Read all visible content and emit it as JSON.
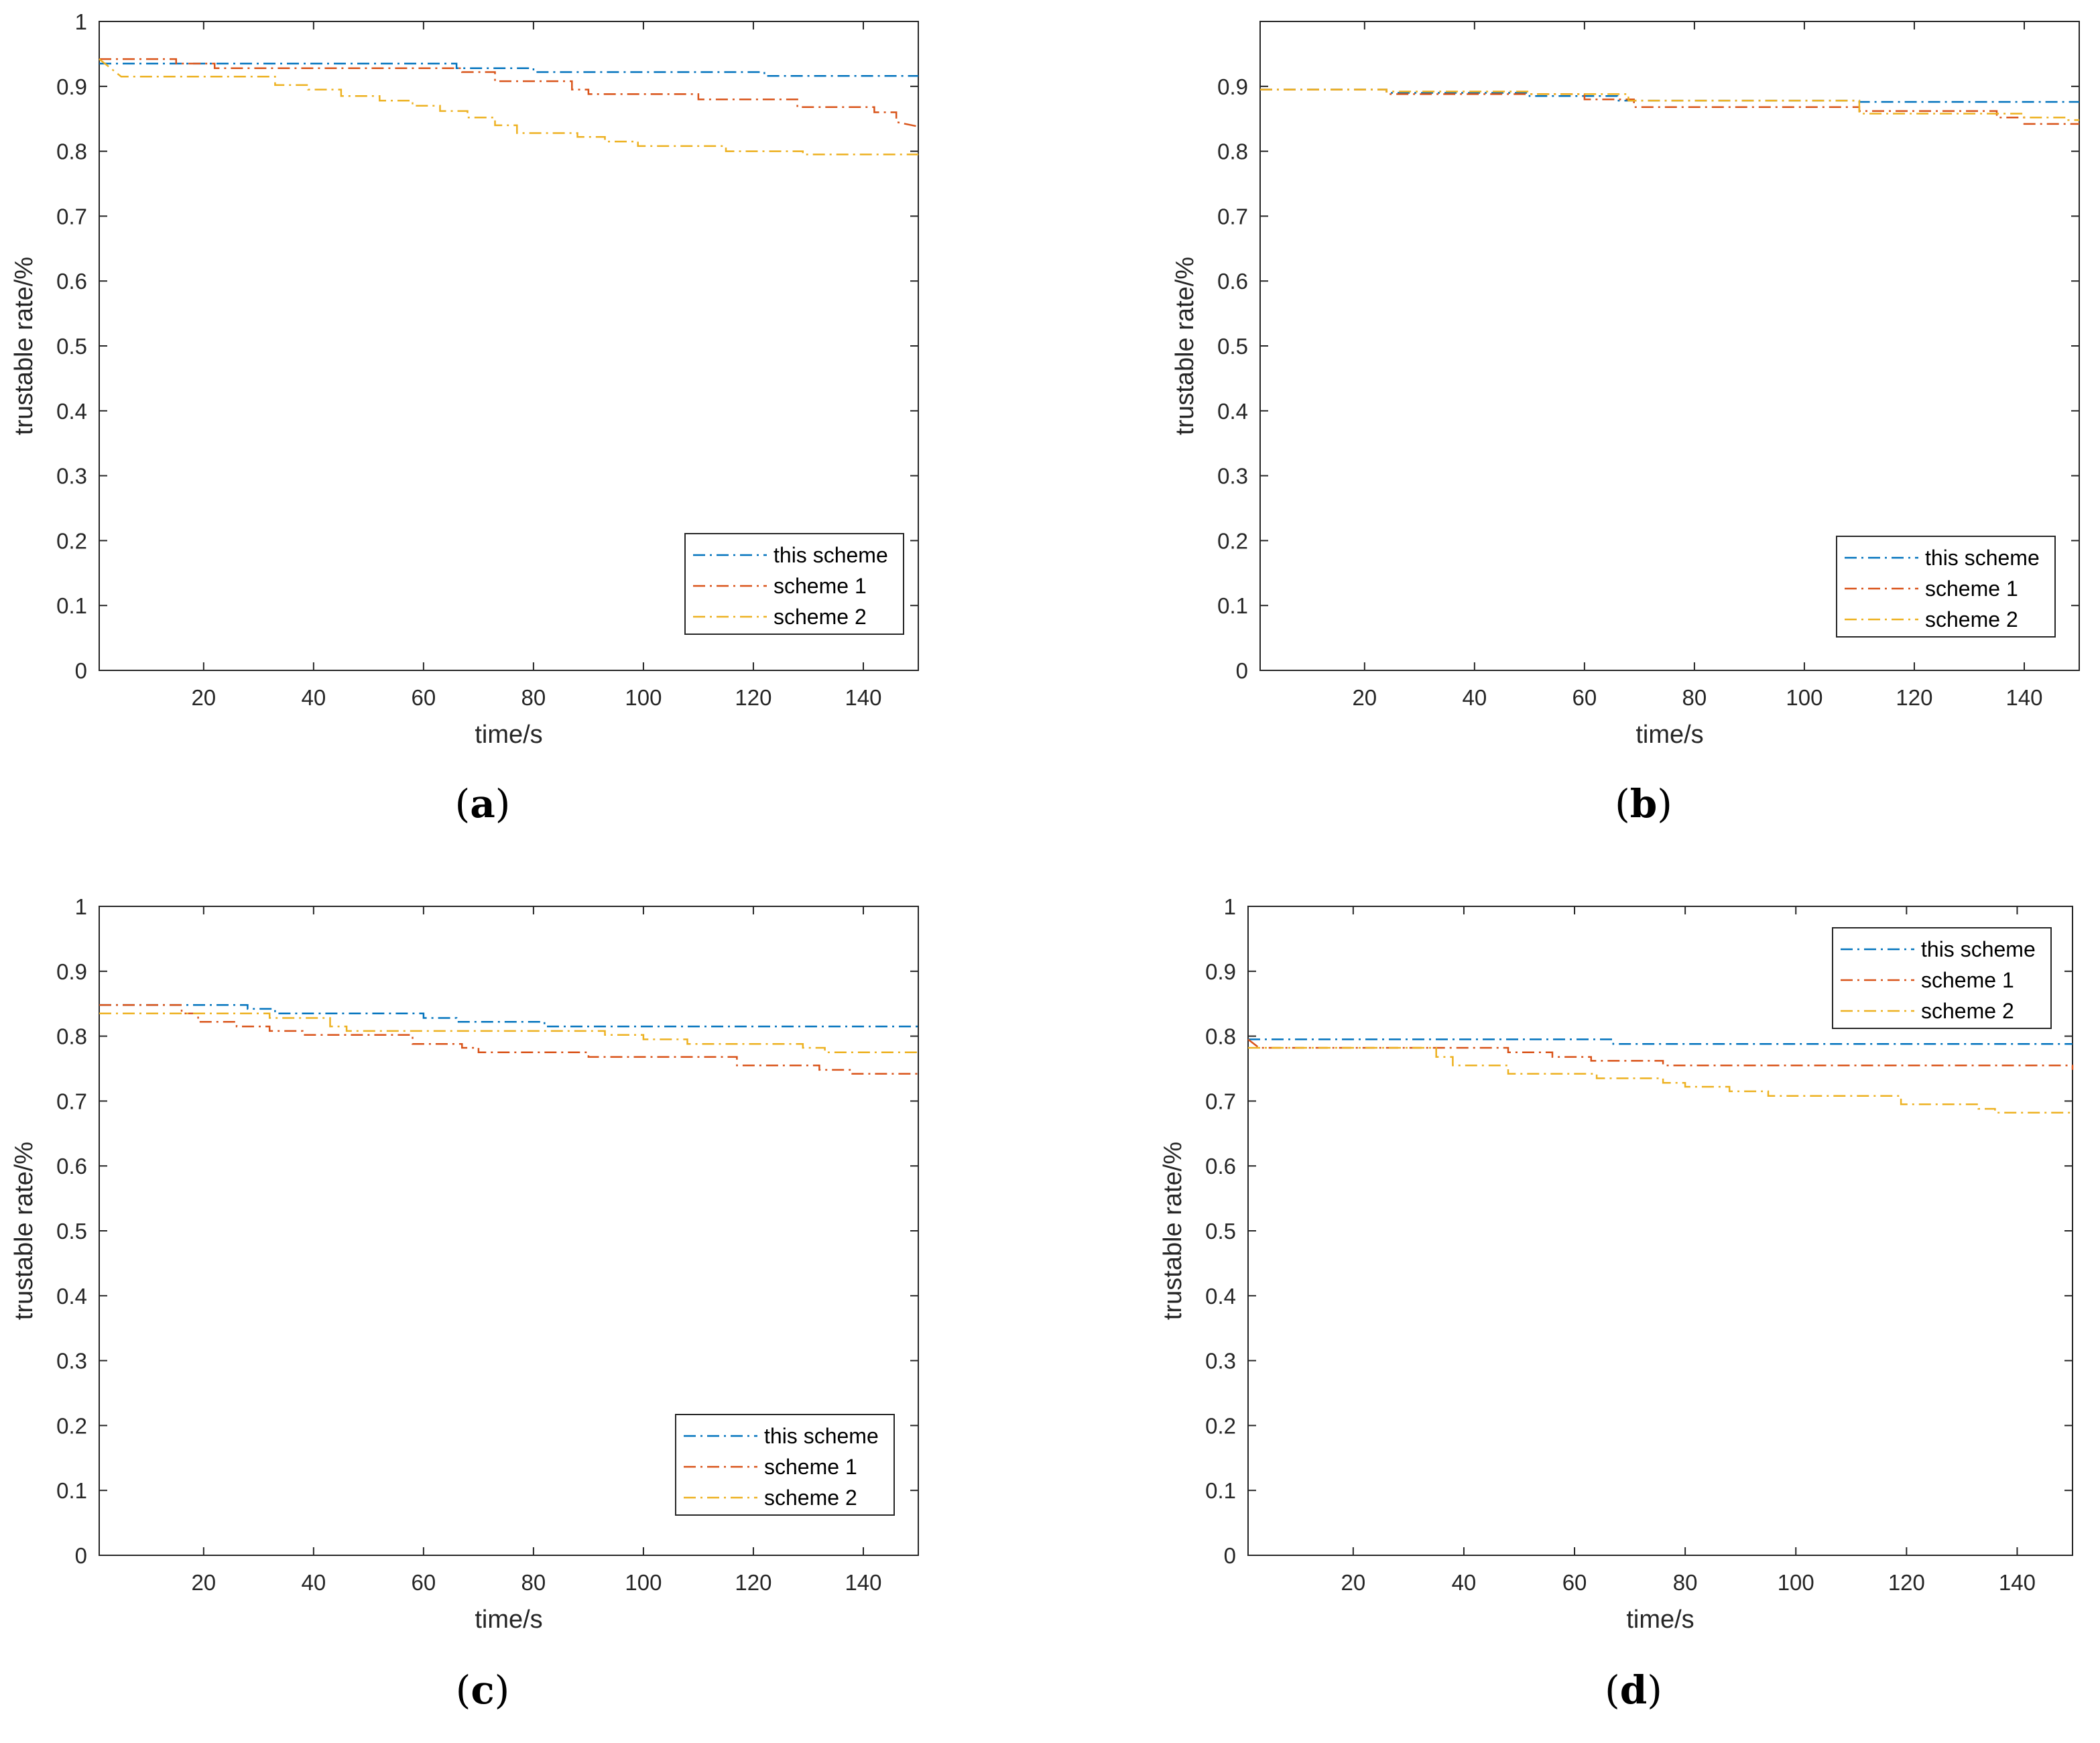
{
  "colors": {
    "this_scheme": "#0072BD",
    "scheme_1": "#D95319",
    "scheme_2": "#EDB120",
    "axis": "#262626"
  },
  "chart_data": [
    {
      "type": "line",
      "id": "a",
      "caption": "a",
      "xlabel": "time/s",
      "ylabel": "trustable rate/%",
      "xlim": [
        1,
        150
      ],
      "ylim": [
        0,
        1
      ],
      "xticks": [
        20,
        40,
        60,
        80,
        100,
        120,
        140
      ],
      "xtick_labels": [
        "20",
        "40",
        "60",
        "80",
        "100",
        "120",
        "140"
      ],
      "yticks": [
        0,
        0.1,
        0.2,
        0.3,
        0.4,
        0.5,
        0.6,
        0.7,
        0.8,
        0.9,
        1
      ],
      "ytick_labels": [
        "0",
        "0.1",
        "0.2",
        "0.3",
        "0.4",
        "0.5",
        "0.6",
        "0.7",
        "0.8",
        "0.9",
        "1"
      ],
      "legend_position": "bottom-right",
      "series": [
        {
          "name": "this scheme",
          "color": "#0072BD",
          "points": [
            [
              1,
              0.935
            ],
            [
              66,
              0.935
            ],
            [
              66,
              0.928
            ],
            [
              80,
              0.928
            ],
            [
              80,
              0.922
            ],
            [
              122,
              0.922
            ],
            [
              122,
              0.916
            ],
            [
              150,
              0.916
            ]
          ]
        },
        {
          "name": "scheme 1",
          "color": "#D95319",
          "points": [
            [
              1,
              0.942
            ],
            [
              15,
              0.942
            ],
            [
              15,
              0.935
            ],
            [
              22,
              0.935
            ],
            [
              22,
              0.928
            ],
            [
              67,
              0.928
            ],
            [
              67,
              0.922
            ],
            [
              73,
              0.922
            ],
            [
              73,
              0.908
            ],
            [
              87,
              0.908
            ],
            [
              87,
              0.895
            ],
            [
              90,
              0.895
            ],
            [
              90,
              0.888
            ],
            [
              110,
              0.888
            ],
            [
              110,
              0.88
            ],
            [
              128,
              0.88
            ],
            [
              128,
              0.868
            ],
            [
              142,
              0.868
            ],
            [
              142,
              0.86
            ],
            [
              146,
              0.86
            ],
            [
              146,
              0.845
            ],
            [
              150,
              0.838
            ]
          ]
        },
        {
          "name": "scheme 2",
          "color": "#EDB120",
          "points": [
            [
              1,
              0.942
            ],
            [
              5,
              0.915
            ],
            [
              33,
              0.915
            ],
            [
              33,
              0.902
            ],
            [
              39,
              0.902
            ],
            [
              39,
              0.895
            ],
            [
              45,
              0.895
            ],
            [
              45,
              0.885
            ],
            [
              52,
              0.885
            ],
            [
              52,
              0.878
            ],
            [
              58,
              0.878
            ],
            [
              58,
              0.87
            ],
            [
              63,
              0.87
            ],
            [
              63,
              0.862
            ],
            [
              68,
              0.862
            ],
            [
              68,
              0.852
            ],
            [
              73,
              0.852
            ],
            [
              73,
              0.84
            ],
            [
              77,
              0.84
            ],
            [
              77,
              0.828
            ],
            [
              88,
              0.828
            ],
            [
              88,
              0.822
            ],
            [
              93,
              0.822
            ],
            [
              93,
              0.815
            ],
            [
              99,
              0.815
            ],
            [
              99,
              0.808
            ],
            [
              115,
              0.808
            ],
            [
              115,
              0.8
            ],
            [
              129,
              0.8
            ],
            [
              129,
              0.795
            ],
            [
              150,
              0.795
            ]
          ]
        }
      ],
      "legend": [
        "this scheme",
        "scheme 1",
        "scheme 2"
      ]
    },
    {
      "type": "line",
      "id": "b",
      "caption": "b",
      "xlabel": "time/s",
      "ylabel": "trustable rate/%",
      "xlim": [
        1,
        150
      ],
      "ylim": [
        0,
        1
      ],
      "xticks": [
        20,
        40,
        60,
        80,
        100,
        120,
        140
      ],
      "xtick_labels": [
        "20",
        "40",
        "60",
        "80",
        "100",
        "120",
        "140"
      ],
      "yticks": [
        0,
        0.1,
        0.2,
        0.3,
        0.4,
        0.5,
        0.6,
        0.7,
        0.8,
        0.9
      ],
      "ytick_labels": [
        "0",
        "0.1",
        "0.2",
        "0.3",
        "0.4",
        "0.5",
        "0.6",
        "0.7",
        "0.8",
        "0.9"
      ],
      "legend_position": "bottom-right",
      "series": [
        {
          "name": "this scheme",
          "color": "#0072BD",
          "points": [
            [
              1,
              0.895
            ],
            [
              24,
              0.895
            ],
            [
              24,
              0.89
            ],
            [
              50,
              0.89
            ],
            [
              50,
              0.885
            ],
            [
              66,
              0.885
            ],
            [
              66,
              0.878
            ],
            [
              110,
              0.878
            ],
            [
              110,
              0.876
            ],
            [
              150,
              0.876
            ]
          ]
        },
        {
          "name": "scheme 1",
          "color": "#D95319",
          "points": [
            [
              1,
              0.895
            ],
            [
              24,
              0.895
            ],
            [
              24,
              0.888
            ],
            [
              60,
              0.888
            ],
            [
              60,
              0.88
            ],
            [
              69,
              0.88
            ],
            [
              69,
              0.868
            ],
            [
              110,
              0.868
            ],
            [
              110,
              0.862
            ],
            [
              135,
              0.862
            ],
            [
              135,
              0.852
            ],
            [
              140,
              0.852
            ],
            [
              140,
              0.842
            ],
            [
              150,
              0.842
            ]
          ]
        },
        {
          "name": "scheme 2",
          "color": "#EDB120",
          "points": [
            [
              1,
              0.895
            ],
            [
              24,
              0.895
            ],
            [
              24,
              0.892
            ],
            [
              50,
              0.892
            ],
            [
              50,
              0.888
            ],
            [
              68,
              0.888
            ],
            [
              68,
              0.878
            ],
            [
              110,
              0.878
            ],
            [
              110,
              0.858
            ],
            [
              140,
              0.858
            ],
            [
              140,
              0.852
            ],
            [
              148,
              0.852
            ],
            [
              148,
              0.848
            ],
            [
              150,
              0.848
            ]
          ]
        }
      ],
      "legend": [
        "this scheme",
        "scheme 1",
        "scheme 2"
      ]
    },
    {
      "type": "line",
      "id": "c",
      "caption": "c",
      "xlabel": "time/s",
      "ylabel": "trustable rate/%",
      "xlim": [
        1,
        150
      ],
      "ylim": [
        0,
        1
      ],
      "xticks": [
        20,
        40,
        60,
        80,
        100,
        120,
        140
      ],
      "xtick_labels": [
        "20",
        "40",
        "60",
        "80",
        "100",
        "120",
        "140"
      ],
      "yticks": [
        0,
        0.1,
        0.2,
        0.3,
        0.4,
        0.5,
        0.6,
        0.7,
        0.8,
        0.9,
        1
      ],
      "ytick_labels": [
        "0",
        "0.1",
        "0.2",
        "0.3",
        "0.4",
        "0.5",
        "0.6",
        "0.7",
        "0.8",
        "0.9",
        "1"
      ],
      "legend_position": "bottom-right",
      "series": [
        {
          "name": "this scheme",
          "color": "#0072BD",
          "points": [
            [
              1,
              0.848
            ],
            [
              28,
              0.848
            ],
            [
              28,
              0.842
            ],
            [
              33,
              0.842
            ],
            [
              33,
              0.835
            ],
            [
              60,
              0.835
            ],
            [
              60,
              0.828
            ],
            [
              66,
              0.828
            ],
            [
              66,
              0.822
            ],
            [
              82,
              0.822
            ],
            [
              82,
              0.815
            ],
            [
              150,
              0.815
            ]
          ]
        },
        {
          "name": "scheme 1",
          "color": "#D95319",
          "points": [
            [
              1,
              0.848
            ],
            [
              16,
              0.848
            ],
            [
              16,
              0.835
            ],
            [
              19,
              0.835
            ],
            [
              19,
              0.822
            ],
            [
              26,
              0.822
            ],
            [
              26,
              0.815
            ],
            [
              32,
              0.815
            ],
            [
              32,
              0.808
            ],
            [
              38,
              0.808
            ],
            [
              38,
              0.802
            ],
            [
              58,
              0.802
            ],
            [
              58,
              0.788
            ],
            [
              67,
              0.788
            ],
            [
              67,
              0.782
            ],
            [
              70,
              0.782
            ],
            [
              70,
              0.775
            ],
            [
              90,
              0.775
            ],
            [
              90,
              0.768
            ],
            [
              117,
              0.768
            ],
            [
              117,
              0.755
            ],
            [
              132,
              0.755
            ],
            [
              132,
              0.748
            ],
            [
              138,
              0.748
            ],
            [
              138,
              0.742
            ],
            [
              150,
              0.742
            ]
          ]
        },
        {
          "name": "scheme 2",
          "color": "#EDB120",
          "points": [
            [
              1,
              0.835
            ],
            [
              32,
              0.835
            ],
            [
              32,
              0.828
            ],
            [
              43,
              0.828
            ],
            [
              43,
              0.815
            ],
            [
              46,
              0.815
            ],
            [
              46,
              0.808
            ],
            [
              93,
              0.808
            ],
            [
              93,
              0.802
            ],
            [
              100,
              0.802
            ],
            [
              100,
              0.795
            ],
            [
              108,
              0.795
            ],
            [
              108,
              0.788
            ],
            [
              129,
              0.788
            ],
            [
              129,
              0.782
            ],
            [
              133,
              0.782
            ],
            [
              133,
              0.775
            ],
            [
              150,
              0.775
            ]
          ]
        }
      ],
      "legend": [
        "this scheme",
        "scheme 1",
        "scheme 2"
      ]
    },
    {
      "type": "line",
      "id": "d",
      "caption": "d",
      "xlabel": "time/s",
      "ylabel": "trustable rate/%",
      "xlim": [
        1,
        150
      ],
      "ylim": [
        0,
        1
      ],
      "xticks": [
        20,
        40,
        60,
        80,
        100,
        120,
        140
      ],
      "xtick_labels": [
        "20",
        "40",
        "60",
        "80",
        "100",
        "120",
        "140"
      ],
      "yticks": [
        0,
        0.1,
        0.2,
        0.3,
        0.4,
        0.5,
        0.6,
        0.7,
        0.8,
        0.9,
        1
      ],
      "ytick_labels": [
        "0",
        "0.1",
        "0.2",
        "0.3",
        "0.4",
        "0.5",
        "0.6",
        "0.7",
        "0.8",
        "0.9",
        "1"
      ],
      "legend_position": "top-right",
      "series": [
        {
          "name": "this scheme",
          "color": "#0072BD",
          "points": [
            [
              1,
              0.795
            ],
            [
              67,
              0.795
            ],
            [
              67,
              0.788
            ],
            [
              150,
              0.788
            ]
          ]
        },
        {
          "name": "scheme 1",
          "color": "#D95319",
          "points": [
            [
              1,
              0.795
            ],
            [
              3,
              0.782
            ],
            [
              48,
              0.782
            ],
            [
              48,
              0.775
            ],
            [
              56,
              0.775
            ],
            [
              56,
              0.768
            ],
            [
              63,
              0.768
            ],
            [
              63,
              0.762
            ],
            [
              76,
              0.762
            ],
            [
              76,
              0.755
            ],
            [
              150,
              0.755
            ],
            [
              150,
              0.748
            ]
          ]
        },
        {
          "name": "scheme 2",
          "color": "#EDB120",
          "points": [
            [
              1,
              0.782
            ],
            [
              35,
              0.782
            ],
            [
              35,
              0.768
            ],
            [
              38,
              0.768
            ],
            [
              38,
              0.755
            ],
            [
              48,
              0.755
            ],
            [
              48,
              0.742
            ],
            [
              64,
              0.742
            ],
            [
              64,
              0.735
            ],
            [
              76,
              0.735
            ],
            [
              76,
              0.728
            ],
            [
              80,
              0.728
            ],
            [
              80,
              0.722
            ],
            [
              88,
              0.722
            ],
            [
              88,
              0.715
            ],
            [
              95,
              0.715
            ],
            [
              95,
              0.708
            ],
            [
              119,
              0.708
            ],
            [
              119,
              0.695
            ],
            [
              133,
              0.695
            ],
            [
              133,
              0.688
            ],
            [
              136,
              0.688
            ],
            [
              136,
              0.682
            ],
            [
              150,
              0.682
            ]
          ]
        }
      ],
      "legend": [
        "this scheme",
        "scheme 1",
        "scheme 2"
      ]
    }
  ]
}
